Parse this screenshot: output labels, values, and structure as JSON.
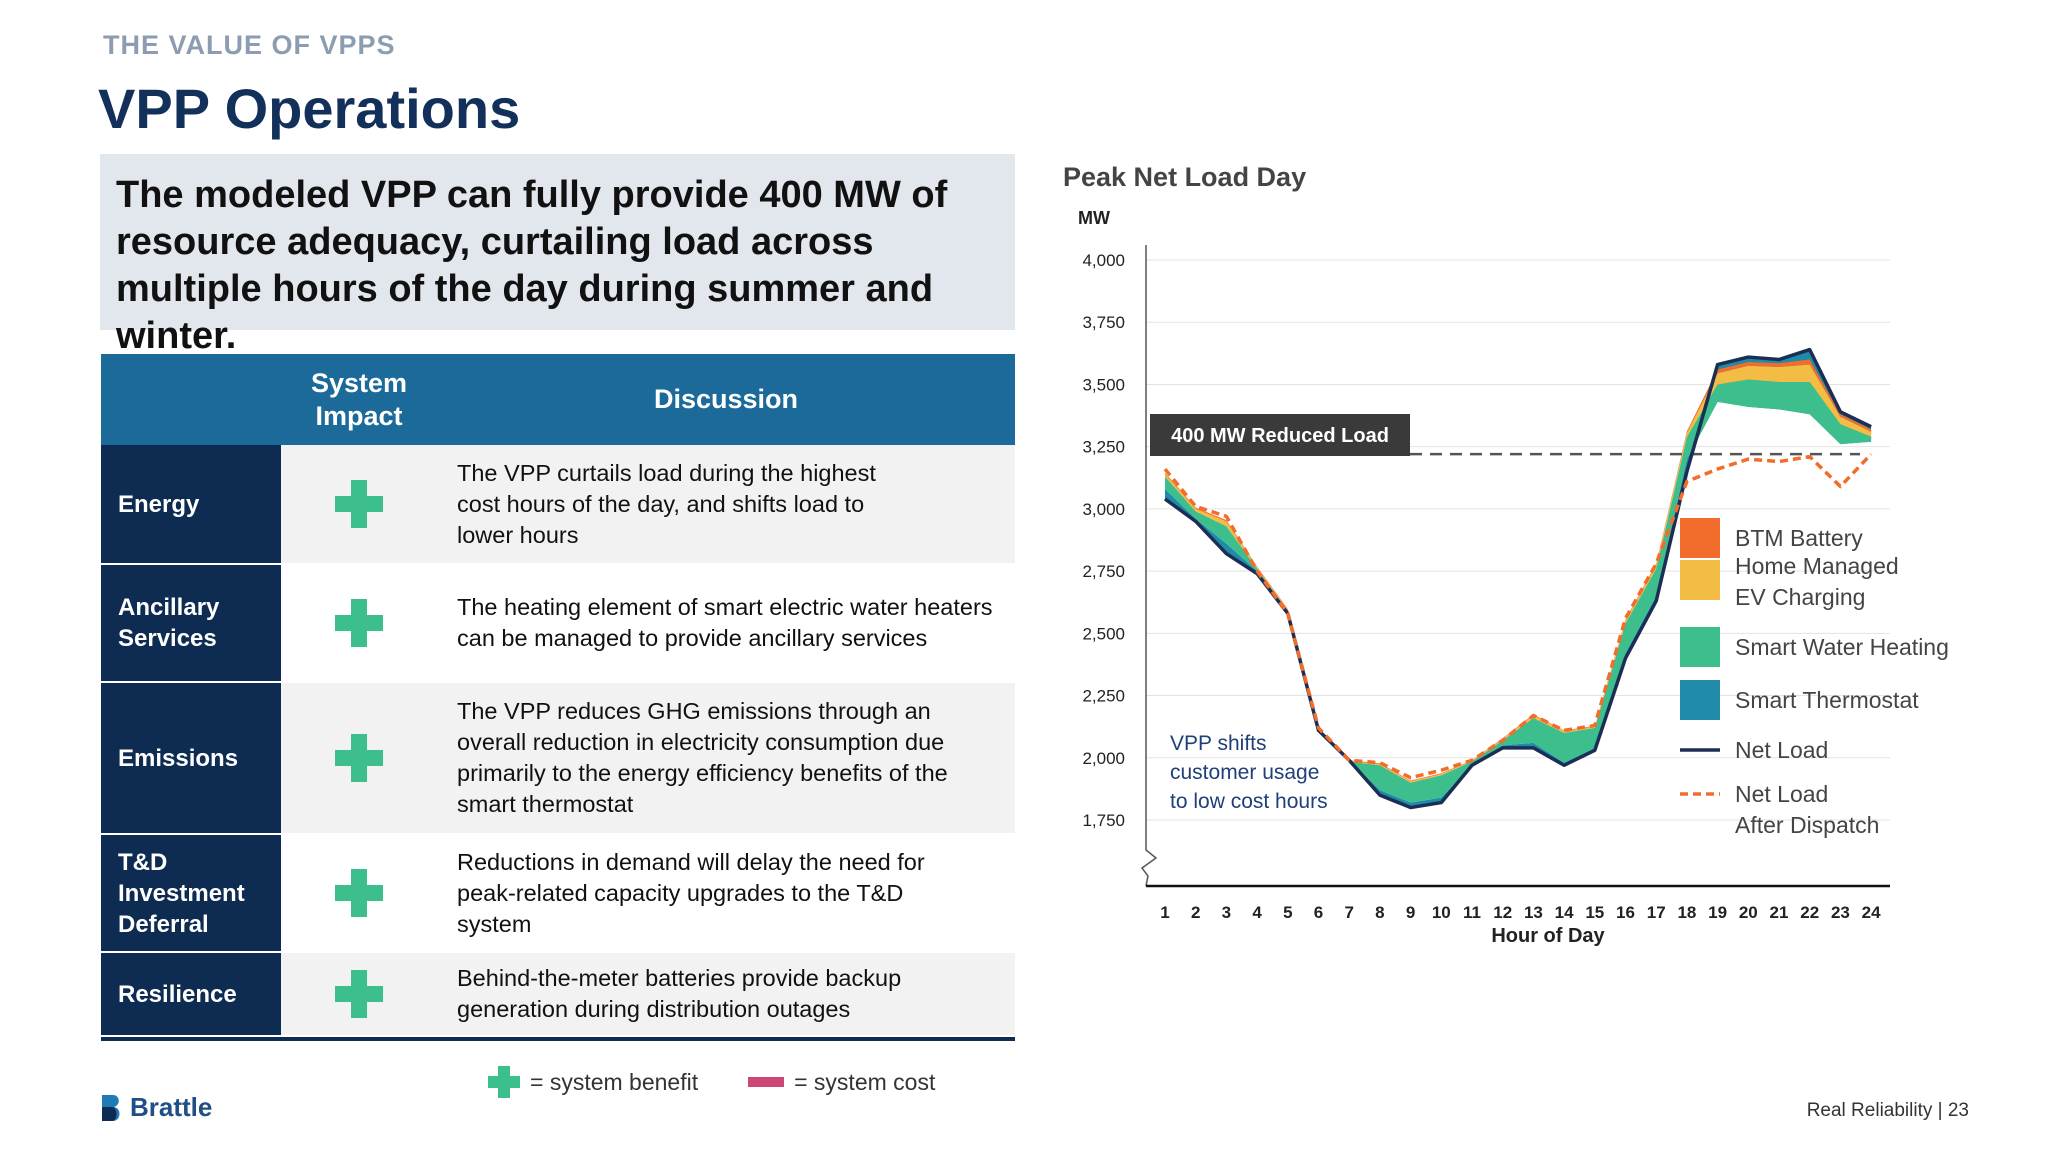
{
  "kicker": "THE VALUE OF VPPS",
  "title": "VPP Operations",
  "callout": "The modeled VPP can fully provide 400 MW of resource adequacy, curtailing load across multiple hours of the day during summer and winter.",
  "table": {
    "header_impact_line1": "System",
    "header_impact_line2": "Impact",
    "header_discussion": "Discussion",
    "rows": [
      {
        "cat1": "Energy",
        "cat2": "",
        "cat3": "",
        "impact": "benefit",
        "discussion": "The VPP curtails load during the highest cost hours of the day, and shifts load to lower hours"
      },
      {
        "cat1": "Ancillary",
        "cat2": "Services",
        "cat3": "",
        "impact": "benefit",
        "discussion": "The heating element of smart electric water heaters can be managed to provide ancillary services"
      },
      {
        "cat1": "Emissions",
        "cat2": "",
        "cat3": "",
        "impact": "benefit",
        "discussion": "The VPP reduces GHG emissions through an overall reduction in electricity consumption due primarily to the energy efficiency benefits of the smart thermostat"
      },
      {
        "cat1": "T&D",
        "cat2": "Investment",
        "cat3": "Deferral",
        "impact": "benefit",
        "discussion": "Reductions in demand will delay the need for peak-related capacity upgrades to the T&D system"
      },
      {
        "cat1": "Resilience",
        "cat2": "",
        "cat3": "",
        "impact": "benefit",
        "discussion": "Behind-the-meter batteries provide backup generation during distribution outages"
      }
    ]
  },
  "legend_bottom": {
    "benefit": "= system benefit",
    "cost": "= system cost"
  },
  "logo": "Brattle",
  "footer": "Real Reliability | 23",
  "colors": {
    "btm_battery": "#f26c2b",
    "ev_charging": "#f3bc45",
    "water_heating": "#3cbf8c",
    "thermostat": "#1f8aaa",
    "net_load": "#1b2f55",
    "net_load_after": "#f26c2b",
    "benefit": "#3cbf8c",
    "cost": "#cc4677"
  },
  "chart_data": {
    "type": "area",
    "title": "Peak Net Load Day",
    "ylabel": "MW",
    "xlabel": "Hour of Day",
    "ylim": [
      1750,
      4000
    ],
    "yticks": [
      "1,750",
      "2,000",
      "2,250",
      "2,500",
      "2,750",
      "3,000",
      "3,250",
      "3,500",
      "3,750",
      "4,000"
    ],
    "x": [
      1,
      2,
      3,
      4,
      5,
      6,
      7,
      8,
      9,
      10,
      11,
      12,
      13,
      14,
      15,
      16,
      17,
      18,
      19,
      20,
      21,
      22,
      23,
      24
    ],
    "series": [
      {
        "name": "Net Load",
        "values": [
          3040,
          2950,
          2820,
          2740,
          2580,
          2110,
          1990,
          1850,
          1800,
          1820,
          1970,
          2040,
          2040,
          1970,
          2030,
          2400,
          2630,
          3150,
          3580,
          3610,
          3600,
          3640,
          3390,
          3330
        ]
      },
      {
        "name": "Net Load After Dispatch",
        "values": [
          3160,
          3010,
          2970,
          2750,
          2580,
          2120,
          1990,
          1980,
          1920,
          1950,
          1990,
          2070,
          2170,
          2110,
          2130,
          2560,
          2780,
          3110,
          3160,
          3200,
          3190,
          3210,
          3090,
          3220
        ]
      },
      {
        "name": "Smart Thermostat",
        "values": [
          3080,
          2960,
          2860,
          2750,
          2580,
          2110,
          1990,
          1870,
          1820,
          1840,
          1970,
          2050,
          2060,
          1980,
          2040,
          2420,
          2650,
          3200,
          3430,
          3410,
          3400,
          3380,
          3260,
          3270
        ]
      },
      {
        "name": "Smart Water Heating",
        "values": [
          3130,
          2990,
          2930,
          2760,
          2590,
          2115,
          1985,
          1970,
          1900,
          1930,
          1985,
          2070,
          2160,
          2100,
          2120,
          2540,
          2760,
          3290,
          3500,
          3520,
          3510,
          3510,
          3340,
          3290
        ]
      },
      {
        "name": "Home Managed EV Charging",
        "values": [
          3140,
          3000,
          2950,
          2765,
          2595,
          2118,
          1988,
          1975,
          1905,
          1935,
          1988,
          2075,
          2170,
          2108,
          2125,
          2552,
          2775,
          3305,
          3545,
          3575,
          3570,
          3580,
          3370,
          3310
        ]
      },
      {
        "name": "BTM Battery",
        "values": [
          3145,
          3005,
          2955,
          2768,
          2598,
          2120,
          1990,
          1978,
          1908,
          1938,
          1990,
          2078,
          2174,
          2110,
          2128,
          2556,
          2780,
          3312,
          3560,
          3590,
          3585,
          3600,
          3380,
          3320
        ]
      }
    ],
    "reference_line": {
      "value": 3220,
      "label": "400 MW Reduced Load"
    },
    "annotation": {
      "line1": "VPP shifts",
      "line2": "customer usage",
      "line3": "to low cost hours"
    },
    "legend": [
      {
        "name": "BTM Battery",
        "line1": "BTM Battery",
        "line2": "",
        "kind": "box",
        "color": "#f26c2b"
      },
      {
        "name": "Home Managed EV Charging",
        "line1": "Home Managed",
        "line2": "EV Charging",
        "kind": "box",
        "color": "#f3bc45"
      },
      {
        "name": "Smart Water Heating",
        "line1": "Smart Water Heating",
        "line2": "",
        "kind": "box",
        "color": "#3cbf8c"
      },
      {
        "name": "Smart Thermostat",
        "line1": "Smart Thermostat",
        "line2": "",
        "kind": "box",
        "color": "#1f8aaa"
      },
      {
        "name": "Net Load",
        "line1": "Net Load",
        "line2": "",
        "kind": "line",
        "color": "#1b2f55"
      },
      {
        "name": "Net Load After Dispatch",
        "line1": "Net Load",
        "line2": "After Dispatch",
        "kind": "dash",
        "color": "#f26c2b"
      }
    ],
    "legend_position": "right",
    "grid": true
  }
}
